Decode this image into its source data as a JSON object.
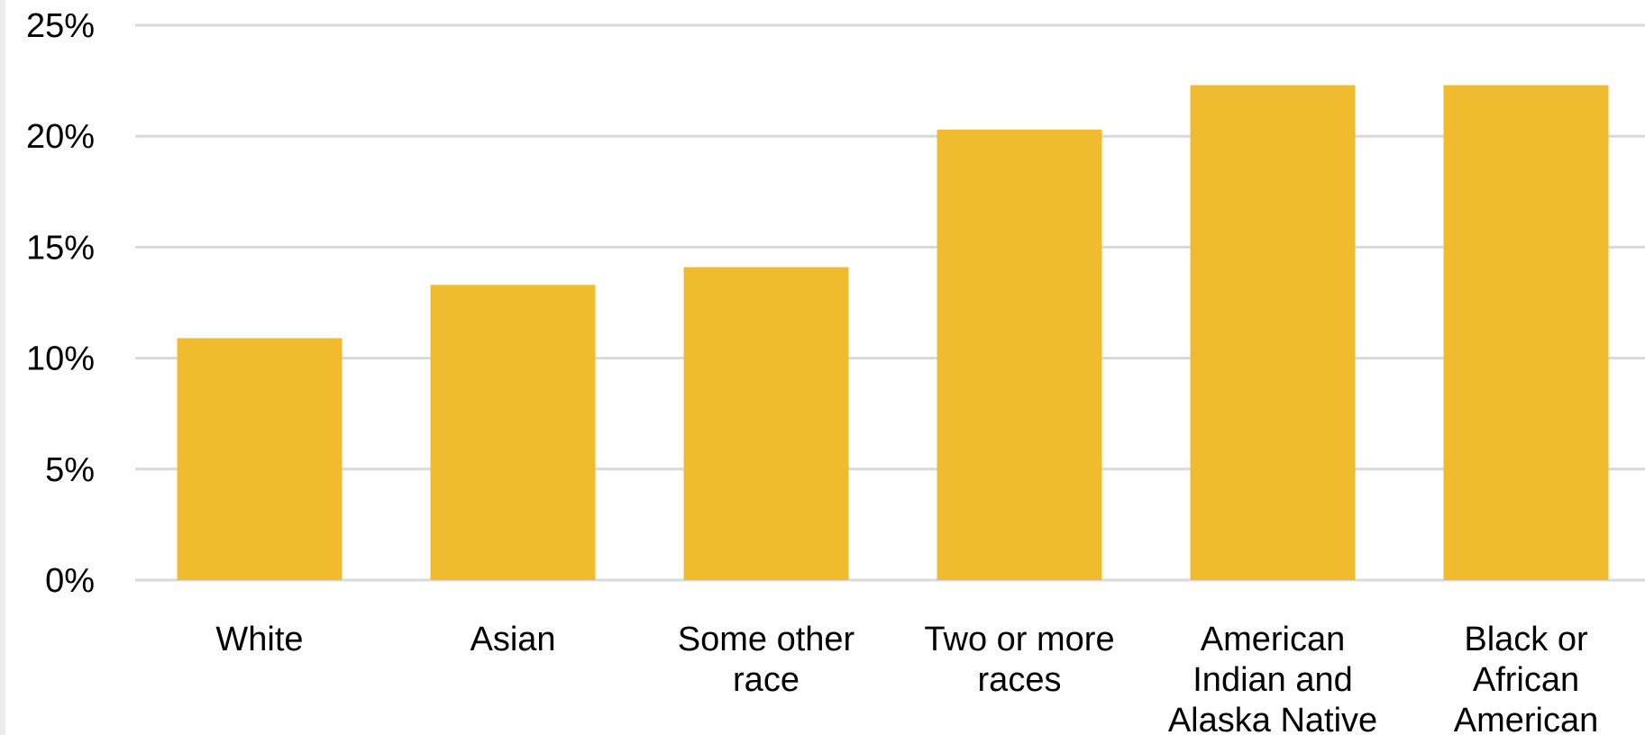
{
  "chart_data": {
    "type": "bar",
    "title": "",
    "xlabel": "",
    "ylabel": "",
    "categories": [
      [
        "White"
      ],
      [
        "Asian"
      ],
      [
        "Some other",
        "race"
      ],
      [
        "Two or more",
        "races"
      ],
      [
        "American",
        "Indian and",
        "Alaska Native"
      ],
      [
        "Black or",
        "African",
        "American"
      ]
    ],
    "values": [
      10.9,
      13.3,
      14.1,
      20.3,
      22.3,
      22.3
    ],
    "ylim": [
      0,
      25
    ],
    "yticks": [
      0,
      5,
      10,
      15,
      20,
      25
    ],
    "ytick_labels": [
      "0%",
      "5%",
      "10%",
      "15%",
      "20%",
      "25%"
    ],
    "grid": true,
    "legend": "none",
    "bar_color": "#f0bb2f",
    "grid_color": "#d9d9d9"
  }
}
